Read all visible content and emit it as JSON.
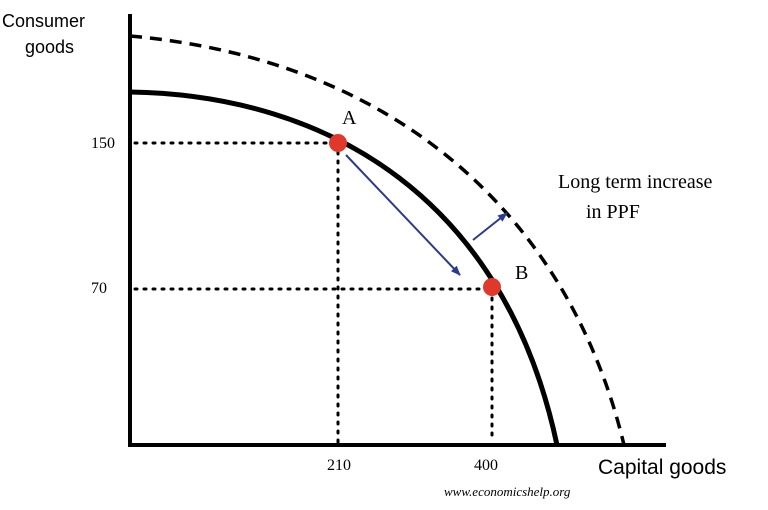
{
  "chart_data": {
    "type": "line",
    "title": "",
    "ylabel": [
      "Consumer",
      "goods"
    ],
    "xlabel": "Capital goods",
    "x_ticks": [
      210,
      400
    ],
    "y_ticks": [
      150,
      70
    ],
    "series": [
      {
        "name": "",
        "style": "solid",
        "color": "#000000"
      },
      {
        "name": "",
        "style": "dashed",
        "color": "#000000"
      }
    ],
    "points": [
      {
        "label": "A",
        "x": 210,
        "y": 150,
        "color": "#e0392b"
      },
      {
        "label": "B",
        "x": 400,
        "y": 70,
        "color": "#e0392b"
      }
    ],
    "annotation": [
      "Long term increase",
      "in PPF"
    ],
    "arrow_color": "#2b3a8f",
    "grid": false
  },
  "credit": "www.economicshelp.org"
}
